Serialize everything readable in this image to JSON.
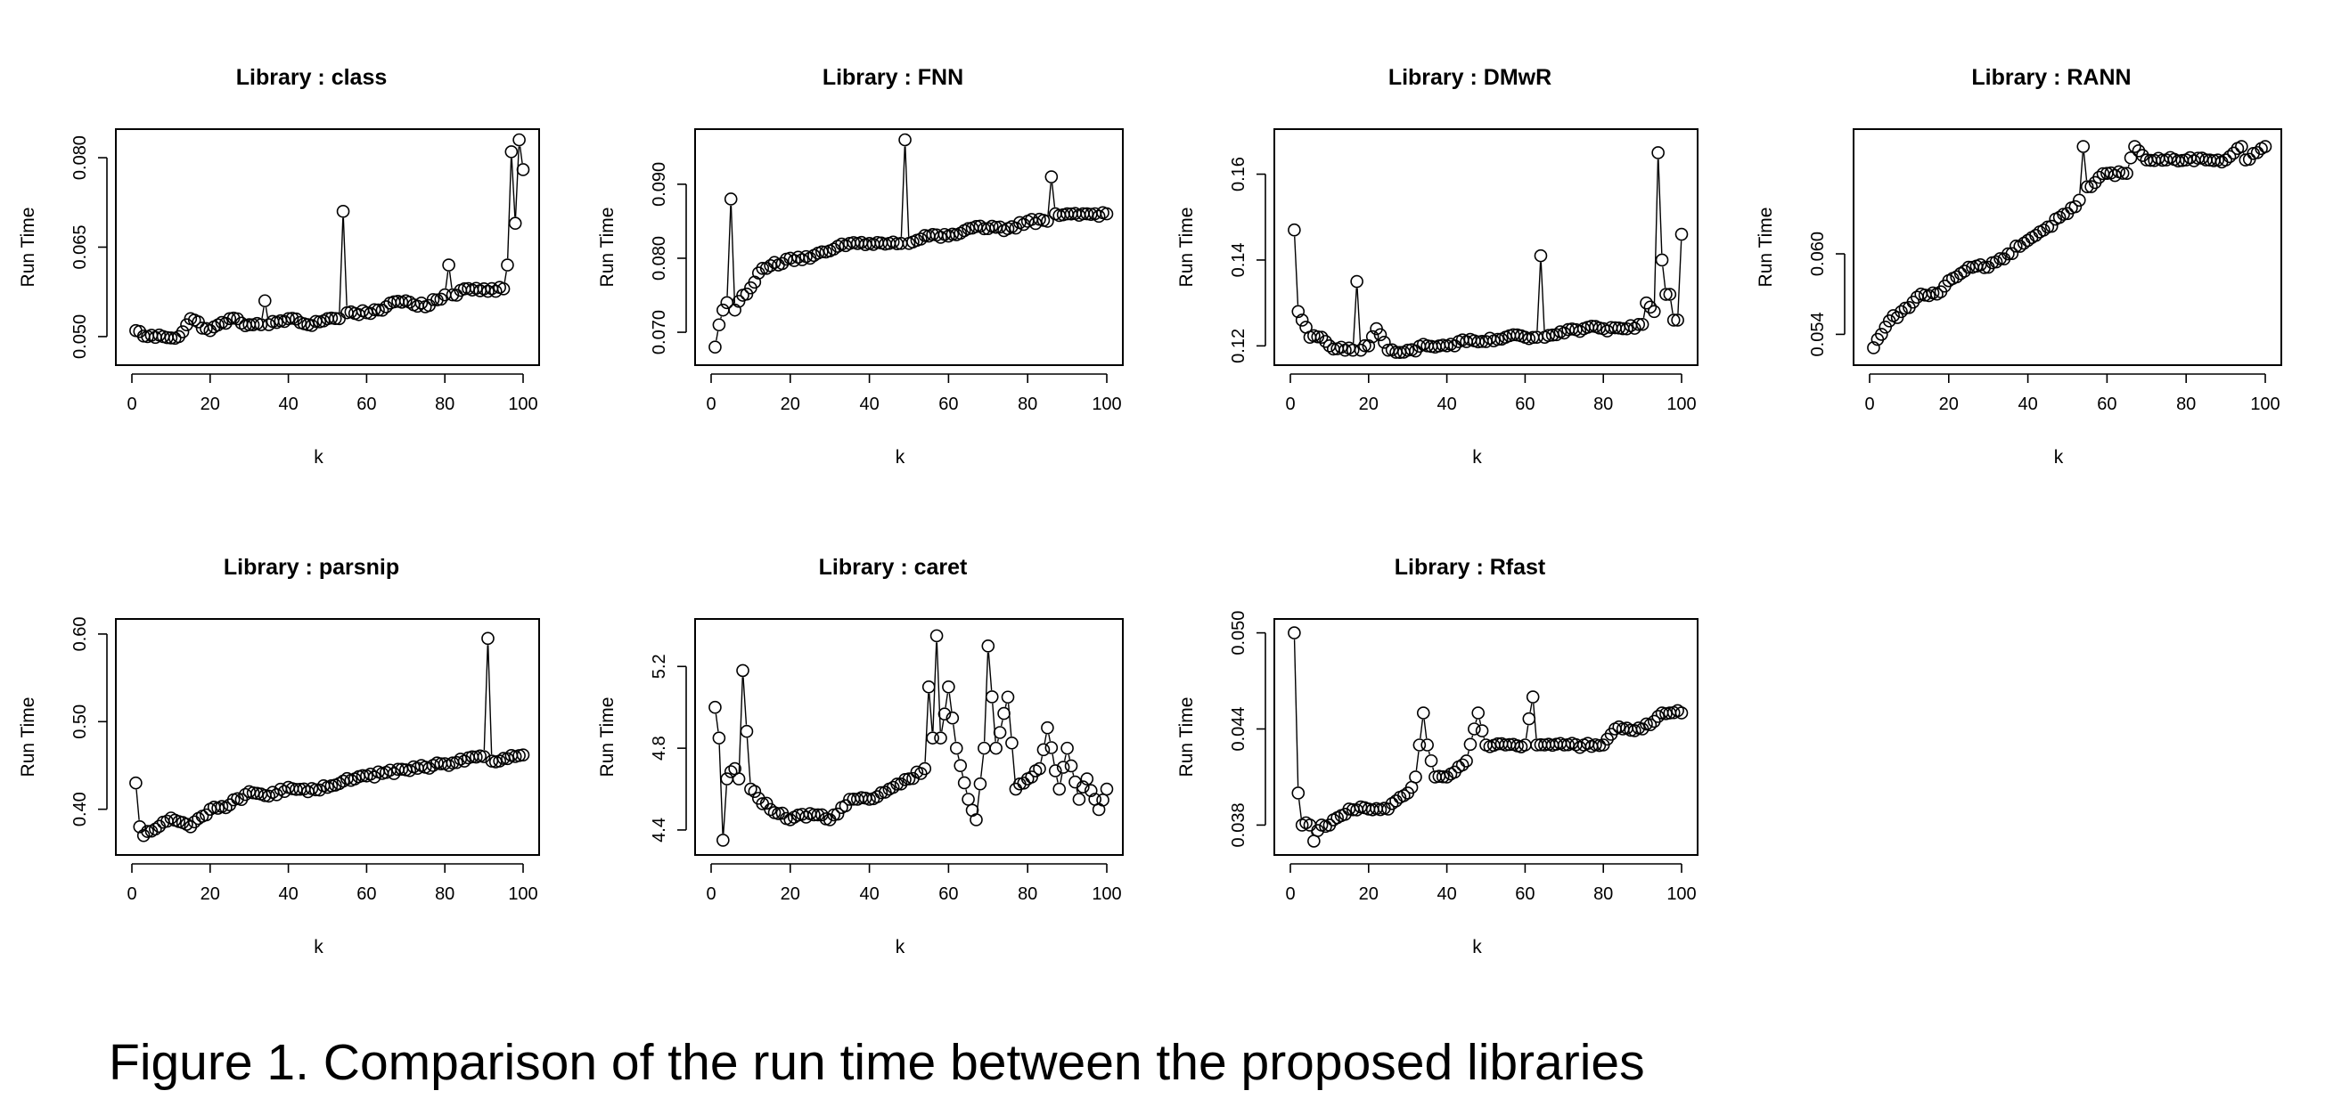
{
  "caption": "Figure 1. Comparison of the run time between the proposed libraries",
  "chart_data": [
    {
      "type": "line",
      "title": "Library : class",
      "xlabel": "k",
      "ylabel": "Run Time",
      "xlim": [
        0,
        100
      ],
      "ylim": [
        0.047,
        0.083
      ],
      "xticks": [
        0,
        20,
        40,
        60,
        80,
        100
      ],
      "yticks": [
        0.05,
        0.065,
        0.08
      ],
      "ytick_labels": [
        "0.050",
        "0.065",
        "0.080"
      ],
      "anchors": [
        [
          1,
          0.051
        ],
        [
          4,
          0.05
        ],
        [
          8,
          0.05
        ],
        [
          12,
          0.05
        ],
        [
          15,
          0.053
        ],
        [
          20,
          0.051
        ],
        [
          25,
          0.053
        ],
        [
          30,
          0.052
        ],
        [
          33,
          0.052
        ],
        [
          34,
          0.056
        ],
        [
          35,
          0.052
        ],
        [
          40,
          0.053
        ],
        [
          45,
          0.052
        ],
        [
          50,
          0.053
        ],
        [
          53,
          0.053
        ],
        [
          54,
          0.071
        ],
        [
          55,
          0.054
        ],
        [
          60,
          0.054
        ],
        [
          65,
          0.055
        ],
        [
          70,
          0.056
        ],
        [
          75,
          0.055
        ],
        [
          80,
          0.057
        ],
        [
          81,
          0.062
        ],
        [
          82,
          0.057
        ],
        [
          85,
          0.058
        ],
        [
          90,
          0.058
        ],
        [
          95,
          0.058
        ],
        [
          96,
          0.062
        ],
        [
          97,
          0.081
        ],
        [
          98,
          0.069
        ],
        [
          99,
          0.083
        ],
        [
          100,
          0.078
        ]
      ]
    },
    {
      "type": "line",
      "title": "Library : FNN",
      "xlabel": "k",
      "ylabel": "Run Time",
      "xlim": [
        0,
        100
      ],
      "ylim": [
        0.067,
        0.096
      ],
      "xticks": [
        0,
        20,
        40,
        60,
        80,
        100
      ],
      "yticks": [
        0.07,
        0.08,
        0.09
      ],
      "ytick_labels": [
        "0.070",
        "0.080",
        "0.090"
      ],
      "anchors": [
        [
          1,
          0.068
        ],
        [
          2,
          0.071
        ],
        [
          3,
          0.073
        ],
        [
          4,
          0.074
        ],
        [
          5,
          0.088
        ],
        [
          6,
          0.073
        ],
        [
          8,
          0.075
        ],
        [
          10,
          0.076
        ],
        [
          12,
          0.078
        ],
        [
          15,
          0.079
        ],
        [
          20,
          0.08
        ],
        [
          25,
          0.08
        ],
        [
          30,
          0.081
        ],
        [
          35,
          0.082
        ],
        [
          40,
          0.082
        ],
        [
          45,
          0.082
        ],
        [
          48,
          0.082
        ],
        [
          49,
          0.096
        ],
        [
          50,
          0.082
        ],
        [
          55,
          0.083
        ],
        [
          60,
          0.083
        ],
        [
          65,
          0.084
        ],
        [
          70,
          0.084
        ],
        [
          75,
          0.084
        ],
        [
          80,
          0.085
        ],
        [
          85,
          0.085
        ],
        [
          86,
          0.091
        ],
        [
          87,
          0.086
        ],
        [
          90,
          0.086
        ],
        [
          95,
          0.086
        ],
        [
          100,
          0.086
        ]
      ]
    },
    {
      "type": "line",
      "title": "Library : DMwR",
      "xlabel": "k",
      "ylabel": "Run Time",
      "xlim": [
        0,
        100
      ],
      "ylim": [
        0.118,
        0.168
      ],
      "xticks": [
        0,
        20,
        40,
        60,
        80,
        100
      ],
      "yticks": [
        0.12,
        0.14,
        0.16
      ],
      "ytick_labels": [
        "0.12",
        "0.14",
        "0.16"
      ],
      "anchors": [
        [
          1,
          0.147
        ],
        [
          2,
          0.128
        ],
        [
          3,
          0.126
        ],
        [
          5,
          0.122
        ],
        [
          8,
          0.122
        ],
        [
          10,
          0.12
        ],
        [
          14,
          0.119
        ],
        [
          16,
          0.119
        ],
        [
          17,
          0.135
        ],
        [
          18,
          0.119
        ],
        [
          20,
          0.12
        ],
        [
          22,
          0.124
        ],
        [
          25,
          0.119
        ],
        [
          30,
          0.119
        ],
        [
          35,
          0.12
        ],
        [
          40,
          0.12
        ],
        [
          45,
          0.121
        ],
        [
          50,
          0.121
        ],
        [
          55,
          0.122
        ],
        [
          60,
          0.122
        ],
        [
          63,
          0.122
        ],
        [
          64,
          0.141
        ],
        [
          65,
          0.122
        ],
        [
          70,
          0.123
        ],
        [
          75,
          0.124
        ],
        [
          80,
          0.124
        ],
        [
          85,
          0.124
        ],
        [
          90,
          0.125
        ],
        [
          91,
          0.13
        ],
        [
          93,
          0.128
        ],
        [
          94,
          0.165
        ],
        [
          95,
          0.14
        ],
        [
          96,
          0.132
        ],
        [
          97,
          0.132
        ],
        [
          98,
          0.126
        ],
        [
          99,
          0.126
        ],
        [
          100,
          0.146
        ]
      ]
    },
    {
      "type": "line",
      "title": "Library : RANN",
      "xlabel": "k",
      "ylabel": "Run Time",
      "xlim": [
        0,
        100
      ],
      "ylim": [
        0.0525,
        0.0685
      ],
      "xticks": [
        0,
        20,
        40,
        60,
        80,
        100
      ],
      "yticks": [
        0.054,
        0.06
      ],
      "ytick_labels": [
        "0.054",
        "0.060"
      ],
      "anchors": [
        [
          1,
          0.053
        ],
        [
          3,
          0.054
        ],
        [
          5,
          0.055
        ],
        [
          10,
          0.056
        ],
        [
          13,
          0.057
        ],
        [
          17,
          0.057
        ],
        [
          20,
          0.058
        ],
        [
          25,
          0.059
        ],
        [
          30,
          0.059
        ],
        [
          35,
          0.06
        ],
        [
          40,
          0.061
        ],
        [
          45,
          0.062
        ],
        [
          50,
          0.063
        ],
        [
          53,
          0.064
        ],
        [
          54,
          0.068
        ],
        [
          55,
          0.065
        ],
        [
          60,
          0.066
        ],
        [
          65,
          0.066
        ],
        [
          67,
          0.068
        ],
        [
          70,
          0.067
        ],
        [
          75,
          0.067
        ],
        [
          80,
          0.067
        ],
        [
          85,
          0.067
        ],
        [
          90,
          0.067
        ],
        [
          94,
          0.068
        ],
        [
          95,
          0.067
        ],
        [
          100,
          0.068
        ]
      ]
    },
    {
      "type": "line",
      "title": "Library : parsnip",
      "xlabel": "k",
      "ylabel": "Run Time",
      "xlim": [
        0,
        100
      ],
      "ylim": [
        0.36,
        0.605
      ],
      "xticks": [
        0,
        20,
        40,
        60,
        80,
        100
      ],
      "yticks": [
        0.4,
        0.5,
        0.6
      ],
      "ytick_labels": [
        "0.40",
        "0.50",
        "0.60"
      ],
      "anchors": [
        [
          1,
          0.43
        ],
        [
          2,
          0.38
        ],
        [
          3,
          0.37
        ],
        [
          5,
          0.375
        ],
        [
          10,
          0.39
        ],
        [
          15,
          0.38
        ],
        [
          20,
          0.4
        ],
        [
          25,
          0.405
        ],
        [
          30,
          0.42
        ],
        [
          35,
          0.415
        ],
        [
          40,
          0.425
        ],
        [
          45,
          0.42
        ],
        [
          50,
          0.425
        ],
        [
          55,
          0.435
        ],
        [
          60,
          0.438
        ],
        [
          65,
          0.442
        ],
        [
          70,
          0.445
        ],
        [
          75,
          0.448
        ],
        [
          80,
          0.452
        ],
        [
          85,
          0.455
        ],
        [
          90,
          0.46
        ],
        [
          91,
          0.595
        ],
        [
          92,
          0.455
        ],
        [
          95,
          0.458
        ],
        [
          100,
          0.462
        ]
      ]
    },
    {
      "type": "line",
      "title": "Library : caret",
      "xlabel": "k",
      "ylabel": "Run Time",
      "xlim": [
        0,
        100
      ],
      "ylim": [
        4.33,
        5.38
      ],
      "xticks": [
        0,
        20,
        40,
        60,
        80,
        100
      ],
      "yticks": [
        4.4,
        4.8,
        5.2
      ],
      "ytick_labels": [
        "4.4",
        "4.8",
        "5.2"
      ],
      "anchors": [
        [
          1,
          5.0
        ],
        [
          2,
          4.85
        ],
        [
          3,
          4.35
        ],
        [
          4,
          4.65
        ],
        [
          6,
          4.7
        ],
        [
          7,
          4.65
        ],
        [
          8,
          5.18
        ],
        [
          10,
          4.6
        ],
        [
          15,
          4.5
        ],
        [
          20,
          4.45
        ],
        [
          25,
          4.48
        ],
        [
          30,
          4.45
        ],
        [
          35,
          4.55
        ],
        [
          40,
          4.55
        ],
        [
          45,
          4.6
        ],
        [
          50,
          4.65
        ],
        [
          54,
          4.7
        ],
        [
          55,
          5.1
        ],
        [
          56,
          4.85
        ],
        [
          57,
          5.35
        ],
        [
          58,
          4.85
        ],
        [
          60,
          5.1
        ],
        [
          62,
          4.8
        ],
        [
          65,
          4.55
        ],
        [
          67,
          4.45
        ],
        [
          69,
          4.8
        ],
        [
          70,
          5.3
        ],
        [
          72,
          4.8
        ],
        [
          75,
          5.05
        ],
        [
          77,
          4.6
        ],
        [
          80,
          4.65
        ],
        [
          83,
          4.7
        ],
        [
          85,
          4.9
        ],
        [
          88,
          4.6
        ],
        [
          90,
          4.8
        ],
        [
          93,
          4.55
        ],
        [
          95,
          4.65
        ],
        [
          98,
          4.5
        ],
        [
          100,
          4.6
        ]
      ]
    },
    {
      "type": "line",
      "title": "Library : Rfast",
      "xlabel": "k",
      "ylabel": "Run Time",
      "xlim": [
        0,
        100
      ],
      "ylim": [
        0.0368,
        0.0502
      ],
      "xticks": [
        0,
        20,
        40,
        60,
        80,
        100
      ],
      "yticks": [
        0.038,
        0.044,
        0.05
      ],
      "ytick_labels": [
        "0.038",
        "0.044",
        "0.050"
      ],
      "anchors": [
        [
          1,
          0.05
        ],
        [
          2,
          0.04
        ],
        [
          3,
          0.038
        ],
        [
          5,
          0.038
        ],
        [
          6,
          0.037
        ],
        [
          8,
          0.038
        ],
        [
          10,
          0.038
        ],
        [
          15,
          0.039
        ],
        [
          20,
          0.039
        ],
        [
          25,
          0.039
        ],
        [
          30,
          0.04
        ],
        [
          32,
          0.041
        ],
        [
          33,
          0.043
        ],
        [
          34,
          0.045
        ],
        [
          35,
          0.043
        ],
        [
          37,
          0.041
        ],
        [
          40,
          0.041
        ],
        [
          45,
          0.042
        ],
        [
          47,
          0.044
        ],
        [
          48,
          0.045
        ],
        [
          50,
          0.043
        ],
        [
          55,
          0.043
        ],
        [
          60,
          0.043
        ],
        [
          62,
          0.046
        ],
        [
          63,
          0.043
        ],
        [
          65,
          0.043
        ],
        [
          70,
          0.043
        ],
        [
          75,
          0.043
        ],
        [
          80,
          0.043
        ],
        [
          83,
          0.044
        ],
        [
          85,
          0.044
        ],
        [
          90,
          0.044
        ],
        [
          95,
          0.045
        ],
        [
          97,
          0.045
        ],
        [
          100,
          0.045
        ]
      ]
    }
  ]
}
